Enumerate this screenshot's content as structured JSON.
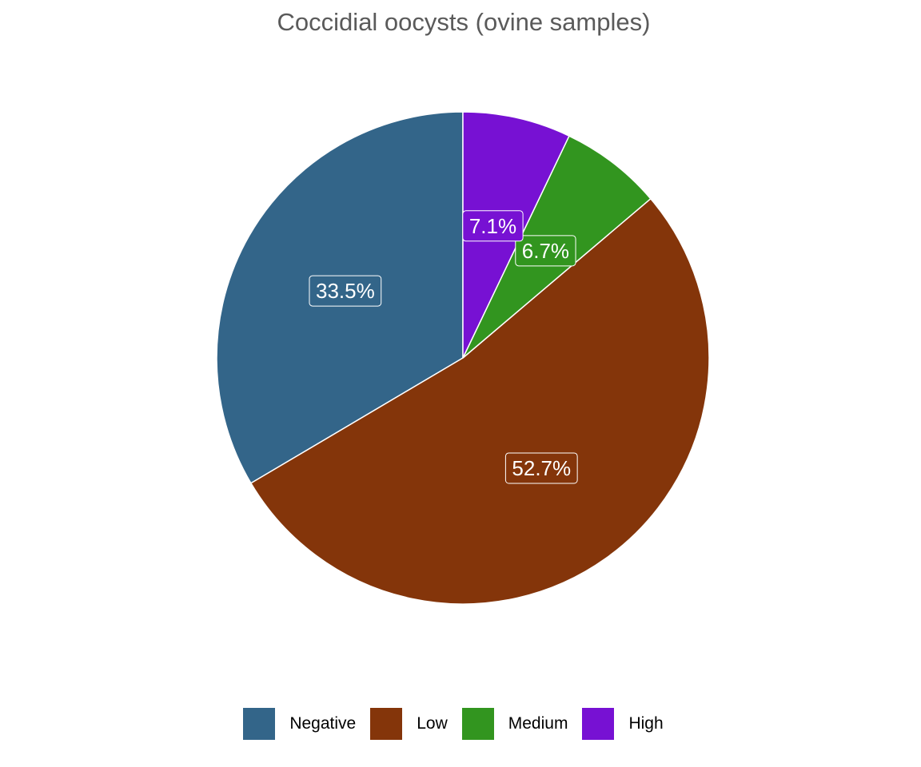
{
  "chart_data": {
    "type": "pie",
    "title": "Coccidial oocysts (ovine samples)",
    "categories": [
      "Negative",
      "Low",
      "Medium",
      "High"
    ],
    "values": [
      33.5,
      52.7,
      6.7,
      7.1
    ],
    "labels": [
      "33.5%",
      "52.7%",
      "6.7%",
      "7.1%"
    ],
    "colors": [
      "#336589",
      "#84350A",
      "#32951F",
      "#7711D3"
    ],
    "legend_position": "bottom",
    "start": "12 o'clock",
    "direction": "counter-clockwise"
  }
}
